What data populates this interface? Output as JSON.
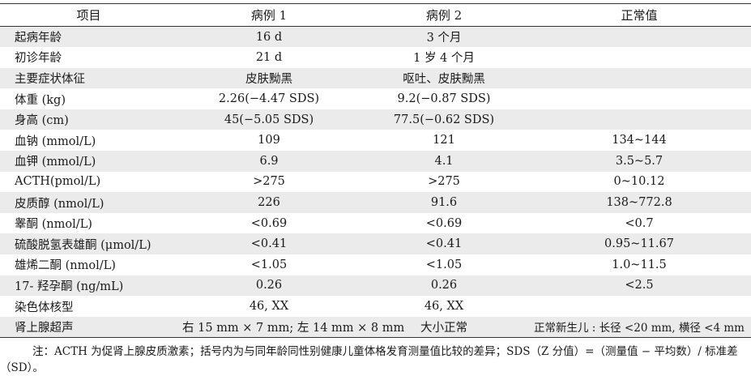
{
  "table": {
    "headers": [
      "项目",
      "病例 1",
      "病例 2",
      "正常值"
    ],
    "rows": [
      [
        "起病年龄",
        "16 d",
        "3 个月",
        ""
      ],
      [
        "初诊年龄",
        "21 d",
        "1 岁 4 个月",
        ""
      ],
      [
        "主要症状体征",
        "皮肤黝黑",
        "呕吐、皮肤黝黑",
        ""
      ],
      [
        "体重 (kg)",
        "2.26(−4.47 SDS)",
        "9.2(−0.87 SDS)",
        ""
      ],
      [
        "身高 (cm)",
        "45(−5.05 SDS)",
        "77.5(−0.62 SDS)",
        ""
      ],
      [
        "血钠 (mmol/L)",
        "109",
        "121",
        "134~144"
      ],
      [
        "血钾 (mmol/L)",
        "6.9",
        "4.1",
        "3.5~5.7"
      ],
      [
        "ACTH(pmol/L)",
        ">275",
        ">275",
        "0~10.12"
      ],
      [
        "皮质醇 (nmol/L)",
        "226",
        "91.6",
        "138~772.8"
      ],
      [
        "睾酮 (nmol/L)",
        "<0.69",
        "<0.69",
        "<0.7"
      ],
      [
        "硫酸脱氢表雄酮 (μmol/L)",
        "<0.41",
        "<0.41",
        "0.95~11.67"
      ],
      [
        "雄烯二酮 (nmol/L)",
        "<1.05",
        "<1.05",
        "1.0~11.5"
      ],
      [
        "17- 羟孕酮 (ng/mL)",
        "0.26",
        "0.26",
        "<2.5"
      ],
      [
        "染色体核型",
        "46, XX",
        "46, XX",
        ""
      ],
      [
        "肾上腺超声",
        "右 15 mm × 7 mm; 左 14 mm × 8 mm",
        "大小正常",
        "正常新生儿 : 长径 <20 mm, 横径 <4 mm"
      ]
    ]
  },
  "note": "注：ACTH 为促肾上腺皮质激素；括号内为与同年龄同性别健康儿童体格发育测量值比较的差异；SDS（Z 分值）=（测量值 − 平均数）/ 标准差（SD）。"
}
